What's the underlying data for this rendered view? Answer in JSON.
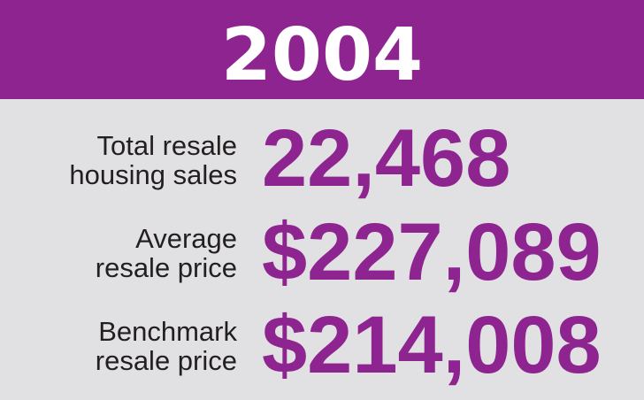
{
  "header": {
    "title": "2004"
  },
  "stats": [
    {
      "label": [
        "Total resale",
        "housing sales"
      ],
      "value": "22,468"
    },
    {
      "label": [
        "Average",
        "resale price"
      ],
      "value": "$227,089"
    },
    {
      "label": [
        "Benchmark",
        "resale price"
      ],
      "value": "$214,008"
    }
  ]
}
